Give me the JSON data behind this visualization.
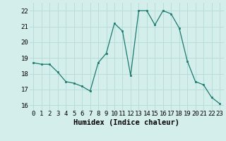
{
  "x": [
    0,
    1,
    2,
    3,
    4,
    5,
    6,
    7,
    8,
    9,
    10,
    11,
    12,
    13,
    14,
    15,
    16,
    17,
    18,
    19,
    20,
    21,
    22,
    23
  ],
  "y": [
    18.7,
    18.6,
    18.6,
    18.1,
    17.5,
    17.4,
    17.2,
    16.9,
    18.7,
    19.3,
    21.2,
    20.7,
    17.9,
    22.0,
    22.0,
    21.1,
    22.0,
    21.8,
    20.9,
    18.8,
    17.5,
    17.3,
    16.5,
    16.1
  ],
  "xlabel": "Humidex (Indice chaleur)",
  "line_color": "#1a7a6e",
  "marker": "s",
  "marker_size": 2,
  "bg_color": "#d4eeeb",
  "grid_color": "#b8dcd8",
  "ylim": [
    15.7,
    22.5
  ],
  "xlim": [
    -0.5,
    23.5
  ],
  "yticks": [
    16,
    17,
    18,
    19,
    20,
    21,
    22
  ],
  "xticks": [
    0,
    1,
    2,
    3,
    4,
    5,
    6,
    7,
    8,
    9,
    10,
    11,
    12,
    13,
    14,
    15,
    16,
    17,
    18,
    19,
    20,
    21,
    22,
    23
  ],
  "tick_fontsize": 6.5,
  "xlabel_fontsize": 7.5
}
